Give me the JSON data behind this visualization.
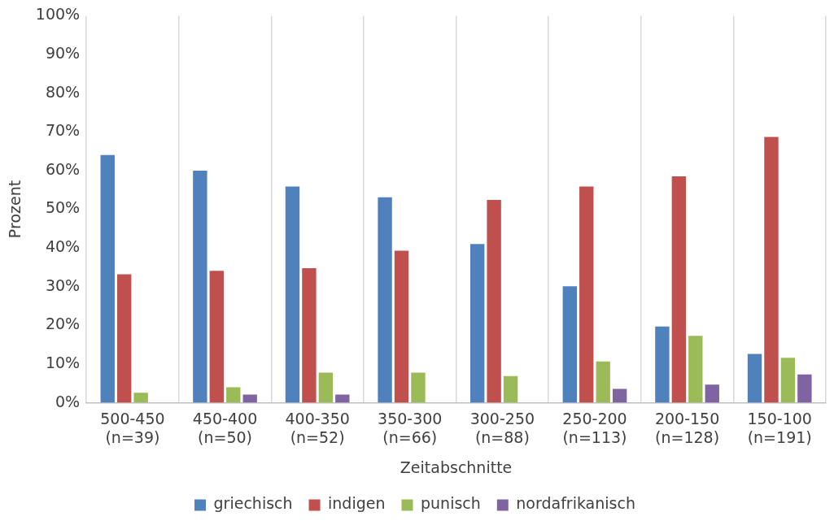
{
  "chart_data": {
    "type": "bar",
    "xlabel": "Zeitabschnitte",
    "ylabel": "Prozent",
    "categories": [
      "500-450\n(n=39)",
      "450-400\n(n=50)",
      "400-350\n(n=52)",
      "350-300\n(n=66)",
      "300-250\n(n=88)",
      "250-200\n(n=113)",
      "200-150\n(n=128)",
      "150-100\n(n=191)"
    ],
    "series": [
      {
        "name": "griechisch",
        "color": "#4f81bd",
        "values": [
          64.0,
          60.0,
          55.9,
          53.1,
          41.0,
          30.1,
          19.7,
          12.6
        ]
      },
      {
        "name": "indigen",
        "color": "#c0504d",
        "values": [
          33.2,
          34.1,
          34.8,
          39.3,
          52.4,
          55.9,
          58.5,
          68.7
        ]
      },
      {
        "name": "punisch",
        "color": "#9bbb59",
        "values": [
          2.6,
          4.0,
          7.8,
          7.8,
          6.9,
          10.7,
          17.3,
          11.6
        ]
      },
      {
        "name": "nordafrikanisch",
        "color": "#8064a2",
        "values": [
          0,
          2.1,
          2.1,
          0,
          0,
          3.6,
          4.7,
          7.3
        ]
      }
    ],
    "ylim": [
      0,
      100
    ],
    "yticks": [
      {
        "value": 0,
        "label": "0%"
      },
      {
        "value": 10,
        "label": "10%"
      },
      {
        "value": 20,
        "label": "20%"
      },
      {
        "value": 30,
        "label": "30%"
      },
      {
        "value": 40,
        "label": "40%"
      },
      {
        "value": 50,
        "label": "50%"
      },
      {
        "value": 60,
        "label": "60%"
      },
      {
        "value": 70,
        "label": "70%"
      },
      {
        "value": 80,
        "label": "80%"
      },
      {
        "value": 90,
        "label": "90%"
      },
      {
        "value": 100,
        "label": "100%"
      }
    ],
    "grid": "x",
    "legend": "bottom"
  }
}
